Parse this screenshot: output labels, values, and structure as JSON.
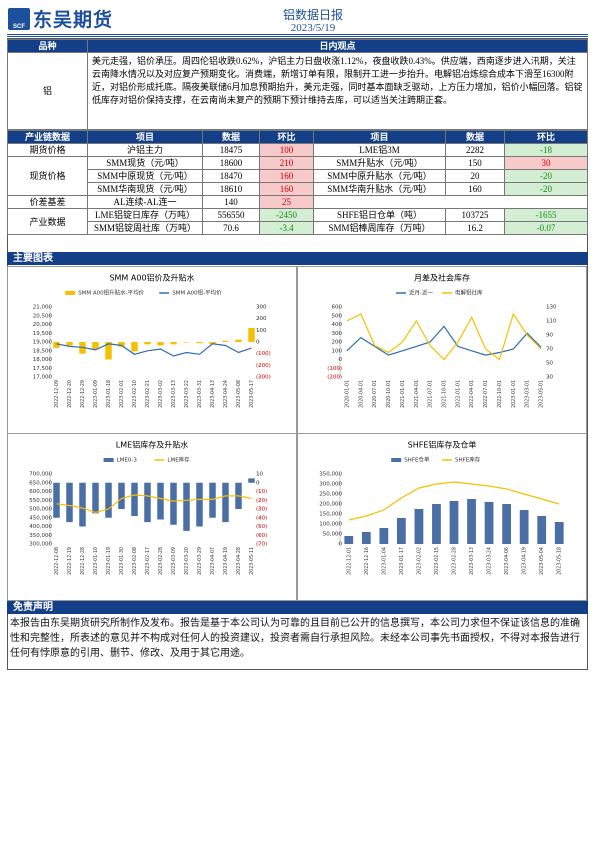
{
  "header": {
    "logo": "东吴期货",
    "logo_mark": "SCF",
    "title": "铝数据日报",
    "date": "2023/5/19"
  },
  "view_table": {
    "header": [
      "品种",
      "日内观点"
    ],
    "variety": "铝",
    "text": "美元走强，铝价承压。周四伦铝收跌0.62%，沪铝主力日盘收涨1.12%，夜盘收跌0.43%。供应端，西南逐步进入汛期，关注云南降水情况以及对应复产预期变化。消费端，新增订单有限，限制开工进一步抬升。电解铝冶炼综合成本下滑至16300附近，对铝价形成托底。隔夜美联储6月加息预期抬升，美元走强，同时基本面缺乏驱动，上方压力增加，铝价小幅回落。铝锭低库存对铝价保持支撑，在云南尚未复产的预期下预计维持去库，可以适当关注跨期正套。"
  },
  "industry_table": {
    "header": [
      "产业链数据",
      "项目",
      "数据",
      "环比",
      "项目",
      "数据",
      "环比"
    ],
    "groups": [
      {
        "name": "期货价格",
        "rows": [
          [
            "沪铝主力",
            18475,
            100,
            "LME铝3M",
            2282,
            -18
          ]
        ]
      },
      {
        "name": "现货价格",
        "rows": [
          [
            "SMM现货（元/吨）",
            18600,
            210,
            "SMM升贴水（元/吨）",
            150,
            30
          ],
          [
            "SMM中原现货（元/吨）",
            18470,
            160,
            "SMM中原升贴水（元/吨）",
            20,
            -20
          ],
          [
            "SMM华南现货（元/吨）",
            18610,
            160,
            "SMM华南升贴水（元/吨）",
            160,
            -20
          ]
        ]
      },
      {
        "name": "价差基差",
        "rows": [
          [
            "AL连续-AL连一",
            140,
            25
          ]
        ]
      },
      {
        "name": "产业数据",
        "rows": [
          [
            "LME铝锭日库存（万吨）",
            556550,
            -2450,
            "SHFE铝日仓单（吨）",
            103725,
            -1655
          ],
          [
            "SMM铝锭周社库（万吨）",
            70.6,
            -3.4,
            "SMM铝棒周库存（万吨）",
            16.2,
            -0.07
          ]
        ]
      }
    ]
  },
  "charts_section": "主要图表",
  "disclaimer": {
    "title": "免责声明",
    "text": "本报告由东吴期货研究所制作及发布。报告是基于本公司认为可靠的且目前已公开的信息撰写，本公司力求但不保证该信息的准确性和完整性，所表述的意见并不构成对任何人的投资建议，投资者需自行承担风险。未经本公司事先书面授权，不得对本报告进行任何有悖原意的引用、删节、修改、及用于其它用途。"
  },
  "chart_data": [
    {
      "type": "combo",
      "title": "SMM A00铝价及升贴水",
      "legend": "top",
      "categories": [
        "2022-12-09",
        "2022-12-20",
        "2022-12-29",
        "2023-01-09",
        "2023-01-18",
        "2023-02-01",
        "2023-02-10",
        "2023-02-21",
        "2023-03-02",
        "2023-03-13",
        "2023-03-22",
        "2023-03-31",
        "2023-04-13",
        "2023-04-24",
        "2023-05-08",
        "2023-05-17"
      ],
      "ylim": [
        17000,
        21000
      ],
      "yticks": [
        {
          "value": 17000,
          "label": "17,000"
        },
        {
          "value": 17500,
          "label": "17,500"
        },
        {
          "value": 18000,
          "label": "18,000"
        },
        {
          "value": 18500,
          "label": "18,500"
        },
        {
          "value": 19000,
          "label": "19,000"
        },
        {
          "value": 19500,
          "label": "19,500"
        },
        {
          "value": 20000,
          "label": "20,000"
        },
        {
          "value": 20500,
          "label": "20,500"
        },
        {
          "value": 21000,
          "label": "21,000"
        }
      ],
      "y2lim": [
        -300,
        300
      ],
      "y2ticks": [
        {
          "value": -300,
          "label": "(300)"
        },
        {
          "value": -200,
          "label": "(200)"
        },
        {
          "value": -100,
          "label": "(100)"
        },
        0,
        100,
        200,
        300
      ],
      "series": [
        {
          "name": "SMM A00铝升贴水-平均价",
          "color": "#f5c000",
          "type": "bar",
          "axis": "y2",
          "values": [
            -50,
            -30,
            -100,
            -60,
            -150,
            -40,
            -80,
            -20,
            -30,
            -20,
            0,
            -10,
            -20,
            10,
            20,
            120
          ]
        },
        {
          "name": "SMM A00铝-平均价",
          "color": "#2e6db4",
          "type": "line",
          "axis": "y",
          "values": [
            18900,
            18750,
            18700,
            18550,
            18900,
            18800,
            18300,
            18500,
            18600,
            18200,
            18400,
            18300,
            18900,
            18800,
            18400,
            18650
          ]
        }
      ]
    },
    {
      "type": "combo",
      "title": "月差及社会库存",
      "legend": "top",
      "categories": [
        "2020-01-01",
        "2020-04-01",
        "2020-07-01",
        "2020-10-01",
        "2021-01-01",
        "2021-04-01",
        "2021-07-01",
        "2021-10-01",
        "2022-01-01",
        "2022-04-01",
        "2022-07-01",
        "2022-10-01",
        "2023-01-01",
        "2023-03-01",
        "2023-05-01"
      ],
      "ylim": [
        -200,
        600
      ],
      "yticks": [
        {
          "value": -200,
          "label": "(200)"
        },
        {
          "value": -100,
          "label": "(100)"
        },
        0,
        100,
        200,
        300,
        400,
        500,
        600
      ],
      "y2lim": [
        30,
        130
      ],
      "y2ticks": [
        30,
        50,
        70,
        90,
        110,
        130
      ],
      "series": [
        {
          "name": "近月-近一",
          "color": "#2e6db4",
          "type": "line",
          "axis": "y",
          "values": [
            100,
            250,
            150,
            50,
            100,
            150,
            200,
            380,
            150,
            100,
            50,
            80,
            120,
            300,
            140
          ]
        },
        {
          "name": "电解铝社库",
          "color": "#f5c000",
          "type": "line",
          "axis": "y2",
          "values": [
            110,
            120,
            75,
            65,
            80,
            110,
            75,
            55,
            80,
            115,
            70,
            55,
            120,
            90,
            70
          ]
        }
      ]
    },
    {
      "type": "combo",
      "title": "LME铝库存及升贴水",
      "legend": "top",
      "categories": [
        "2022-12-08",
        "2022-12-19",
        "2022-12-28",
        "2023-01-10",
        "2023-01-19",
        "2023-01-30",
        "2023-02-08",
        "2023-02-17",
        "2023-02-28",
        "2023-03-09",
        "2023-03-20",
        "2023-03-29",
        "2023-04-07",
        "2023-04-19",
        "2023-04-28",
        "2023-05-11"
      ],
      "ylim": [
        300000,
        700000
      ],
      "yticks": [
        {
          "value": 300000,
          "label": "300,000"
        },
        {
          "value": 350000,
          "label": "350,000"
        },
        {
          "value": 400000,
          "label": "400,000"
        },
        {
          "value": 450000,
          "label": "450,000"
        },
        {
          "value": 500000,
          "label": "500,000"
        },
        {
          "value": 550000,
          "label": "550,000"
        },
        {
          "value": 600000,
          "label": "600,000"
        },
        {
          "value": 650000,
          "label": "650,000"
        },
        {
          "value": 700000,
          "label": "700,000"
        }
      ],
      "y2lim": [
        -70,
        10
      ],
      "y2ticks": [
        {
          "value": -70,
          "label": "(70)"
        },
        {
          "value": -60,
          "label": "(60)"
        },
        {
          "value": -50,
          "label": "(50)"
        },
        {
          "value": -40,
          "label": "(40)"
        },
        {
          "value": -30,
          "label": "(30)"
        },
        {
          "value": -20,
          "label": "(20)"
        },
        {
          "value": -10,
          "label": "(10)"
        },
        0,
        10
      ],
      "series": [
        {
          "name": "LME0-3",
          "color": "#4a6fa5",
          "type": "bar",
          "axis": "y2",
          "values": [
            -40,
            -45,
            -50,
            -35,
            -40,
            -30,
            -38,
            -45,
            -42,
            -48,
            -55,
            -50,
            -40,
            -45,
            -30,
            5
          ]
        },
        {
          "name": "LME库存",
          "color": "#f5c000",
          "type": "line",
          "axis": "y",
          "values": [
            530000,
            520000,
            505000,
            480000,
            500000,
            560000,
            580000,
            575000,
            560000,
            545000,
            550000,
            555000,
            555000,
            575000,
            575000,
            560000
          ]
        }
      ]
    },
    {
      "type": "combo",
      "title": "SHFE铝库存及仓单",
      "legend": "top",
      "categories": [
        "2022-12-01",
        "2022-12-16",
        "2023-01-04",
        "2023-01-17",
        "2023-02-02",
        "2023-02-15",
        "2023-02-28",
        "2023-03-13",
        "2023-03-24",
        "2023-04-06",
        "2023-04-19",
        "2023-05-04",
        "2023-05-18"
      ],
      "ylim": [
        0,
        350000
      ],
      "yticks": [
        0,
        {
          "value": 50000,
          "label": "50,000"
        },
        {
          "value": 100000,
          "label": "100,000"
        },
        {
          "value": 150000,
          "label": "150,000"
        },
        {
          "value": 200000,
          "label": "200,000"
        },
        {
          "value": 250000,
          "label": "250,000"
        },
        {
          "value": 300000,
          "label": "300,000"
        },
        {
          "value": 350000,
          "label": "350,000"
        }
      ],
      "series": [
        {
          "name": "SHFE仓单",
          "color": "#4a6fa5",
          "type": "bar",
          "axis": "y",
          "values": [
            40000,
            60000,
            80000,
            130000,
            175000,
            200000,
            215000,
            225000,
            210000,
            200000,
            170000,
            140000,
            110000
          ]
        },
        {
          "name": "SHFE库存",
          "color": "#f5c000",
          "type": "line",
          "axis": "y",
          "values": [
            120000,
            140000,
            170000,
            230000,
            280000,
            300000,
            310000,
            300000,
            290000,
            275000,
            250000,
            225000,
            200000
          ]
        }
      ]
    }
  ]
}
